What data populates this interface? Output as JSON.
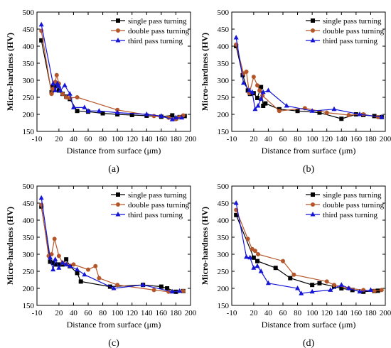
{
  "chart_data": [
    {
      "type": "line",
      "panel_label": "(a)",
      "xlabel": "Distance from surface (μm)",
      "ylabel": "Micro-hardness (HV)",
      "xlim": [
        -10,
        200
      ],
      "ylim": [
        150,
        500
      ],
      "xticks": [
        -10,
        20,
        40,
        60,
        80,
        100,
        120,
        140,
        160,
        180,
        200
      ],
      "yticks": [
        150,
        200,
        250,
        300,
        350,
        400,
        450,
        500
      ],
      "legend_position": "top-right",
      "series": [
        {
          "name": "single pass turning",
          "color": "#000000",
          "marker": "square",
          "x": [
            -4,
            10,
            12,
            15,
            18,
            20,
            25,
            30,
            35,
            45,
            60,
            80,
            100,
            120,
            140,
            160,
            175,
            180,
            185,
            192
          ],
          "y": [
            417,
            265,
            280,
            283,
            290,
            270,
            260,
            252,
            245,
            210,
            208,
            203,
            200,
            198,
            196,
            193,
            197,
            188,
            192,
            195
          ]
        },
        {
          "name": "double pass turning",
          "color": "#b5562a",
          "marker": "circle",
          "x": [
            -4,
            10,
            12,
            15,
            17,
            20,
            25,
            30,
            35,
            45,
            100,
            150,
            170,
            180,
            185,
            190
          ],
          "y": [
            445,
            260,
            275,
            295,
            315,
            290,
            260,
            250,
            248,
            250,
            213,
            195,
            190,
            186,
            192,
            197
          ]
        },
        {
          "name": "third pass turning",
          "color": "#1515d8",
          "marker": "triangle",
          "x": [
            -4,
            12,
            15,
            18,
            20,
            22,
            28,
            35,
            40,
            55,
            60,
            75,
            100,
            140,
            160,
            175,
            180,
            188
          ],
          "y": [
            463,
            290,
            270,
            290,
            283,
            270,
            285,
            260,
            220,
            220,
            210,
            210,
            205,
            200,
            195,
            185,
            190,
            190
          ]
        }
      ]
    },
    {
      "type": "line",
      "panel_label": "(b)",
      "xlabel": "Distance from surface (μm)",
      "ylabel": "Micro-hardness (HV)",
      "xlim": [
        -10,
        200
      ],
      "ylim": [
        150,
        500
      ],
      "xticks": [
        -10,
        20,
        40,
        60,
        80,
        100,
        120,
        140,
        160,
        180,
        200
      ],
      "yticks": [
        150,
        200,
        250,
        300,
        350,
        400,
        450,
        500
      ],
      "legend_position": "top-right",
      "series": [
        {
          "name": "single pass turning",
          "color": "#000000",
          "marker": "square",
          "x": [
            -4,
            5,
            12,
            15,
            20,
            25,
            30,
            33,
            36,
            55,
            80,
            110,
            140,
            160,
            170,
            185,
            195
          ],
          "y": [
            400,
            315,
            270,
            260,
            262,
            248,
            280,
            225,
            232,
            215,
            210,
            205,
            187,
            200,
            198,
            195,
            192
          ]
        },
        {
          "name": "double pass turning",
          "color": "#b5562a",
          "marker": "circle",
          "x": [
            -4,
            6,
            10,
            14,
            20,
            25,
            28,
            32,
            55,
            90,
            120,
            150,
            170,
            190
          ],
          "y": [
            405,
            320,
            325,
            262,
            310,
            285,
            270,
            255,
            210,
            218,
            205,
            198,
            200,
            192
          ]
        },
        {
          "name": "third pass turning",
          "color": "#1515d8",
          "marker": "triangle",
          "x": [
            -4,
            6,
            14,
            18,
            22,
            26,
            30,
            33,
            40,
            65,
            100,
            130,
            165,
            195
          ],
          "y": [
            425,
            292,
            270,
            265,
            215,
            225,
            245,
            265,
            270,
            225,
            210,
            215,
            200,
            192
          ]
        }
      ]
    },
    {
      "type": "line",
      "panel_label": "(c)",
      "xlabel": "Distance from surface (μm)",
      "ylabel": "Micro-hardness (HV)",
      "xlim": [
        -10,
        200
      ],
      "ylim": [
        150,
        500
      ],
      "xticks": [
        -10,
        20,
        40,
        60,
        80,
        100,
        120,
        140,
        160,
        180,
        200
      ],
      "yticks": [
        150,
        200,
        250,
        300,
        350,
        400,
        450,
        500
      ],
      "legend_position": "top-right",
      "series": [
        {
          "name": "single pass turning",
          "color": "#000000",
          "marker": "square",
          "x": [
            -4,
            8,
            12,
            15,
            20,
            25,
            30,
            35,
            45,
            50,
            90,
            135,
            160,
            168,
            180,
            190
          ],
          "y": [
            440,
            278,
            275,
            270,
            270,
            270,
            285,
            265,
            245,
            220,
            205,
            210,
            205,
            200,
            190,
            192
          ]
        },
        {
          "name": "double pass turning",
          "color": "#b5562a",
          "marker": "circle",
          "x": [
            -4,
            6,
            10,
            14,
            20,
            25,
            30,
            40,
            60,
            70,
            75,
            100,
            150,
            170,
            190
          ],
          "y": [
            445,
            295,
            300,
            345,
            295,
            275,
            270,
            270,
            255,
            265,
            230,
            210,
            195,
            190,
            192
          ]
        },
        {
          "name": "third pass turning",
          "color": "#1515d8",
          "marker": "triangle",
          "x": [
            -4,
            8,
            12,
            15,
            20,
            25,
            30,
            35,
            45,
            55,
            95,
            135,
            175,
            185
          ],
          "y": [
            465,
            290,
            255,
            285,
            260,
            275,
            270,
            265,
            255,
            240,
            200,
            210,
            190,
            192
          ]
        }
      ]
    },
    {
      "type": "line",
      "panel_label": "(d)",
      "xlabel": "Distance from surface (μm)",
      "ylabel": "Micro-hardness (HV)",
      "xlim": [
        -10,
        200
      ],
      "ylim": [
        150,
        500
      ],
      "xticks": [
        -10,
        20,
        40,
        60,
        80,
        100,
        120,
        140,
        160,
        180,
        200
      ],
      "yticks": [
        150,
        200,
        250,
        300,
        350,
        400,
        450,
        500
      ],
      "legend_position": "top-right",
      "series": [
        {
          "name": "single pass turning",
          "color": "#000000",
          "marker": "square",
          "x": [
            -4,
            20,
            25,
            50,
            70,
            100,
            110,
            130,
            140,
            155,
            170,
            185,
            190
          ],
          "y": [
            415,
            290,
            280,
            260,
            230,
            210,
            215,
            205,
            200,
            195,
            190,
            192,
            193
          ]
        },
        {
          "name": "double pass turning",
          "color": "#b5562a",
          "marker": "circle",
          "x": [
            -4,
            12,
            18,
            22,
            26,
            60,
            75,
            120,
            130,
            150,
            170,
            185,
            195
          ],
          "y": [
            430,
            345,
            315,
            310,
            300,
            280,
            240,
            220,
            210,
            200,
            195,
            192,
            195
          ]
        },
        {
          "name": "third pass turning",
          "color": "#1515d8",
          "marker": "triangle",
          "x": [
            -4,
            10,
            15,
            20,
            25,
            30,
            40,
            80,
            85,
            100,
            125,
            140,
            150,
            165,
            180
          ],
          "y": [
            450,
            292,
            290,
            260,
            265,
            250,
            215,
            200,
            185,
            190,
            195,
            210,
            200,
            190,
            195
          ]
        }
      ]
    }
  ]
}
